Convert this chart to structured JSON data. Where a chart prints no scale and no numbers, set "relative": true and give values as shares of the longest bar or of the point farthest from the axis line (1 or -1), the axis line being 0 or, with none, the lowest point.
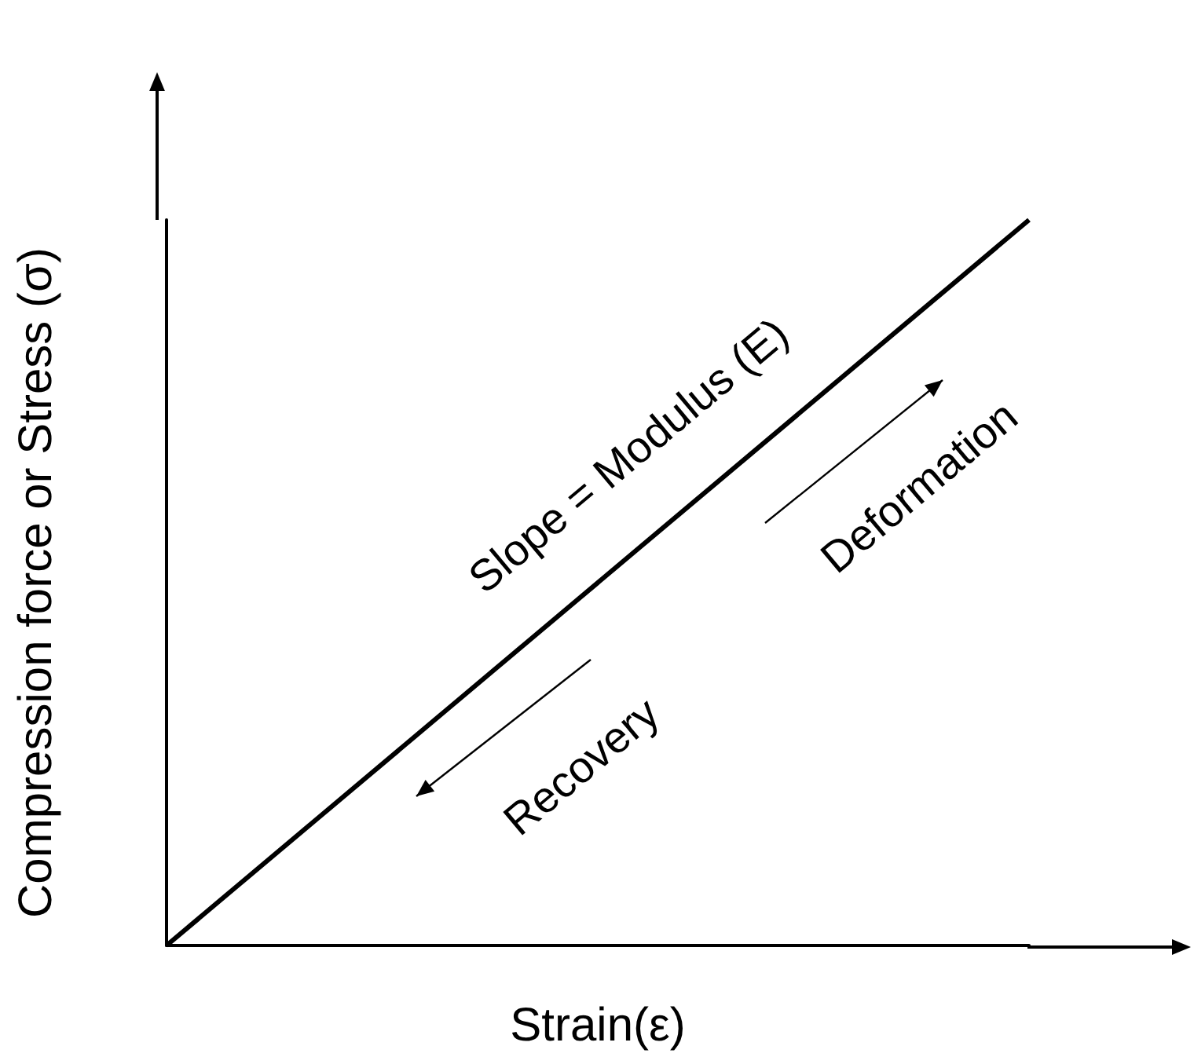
{
  "chart_data": {
    "type": "line",
    "relative": true,
    "xlabel": "Strain(ε)",
    "ylabel": "Compression force or Stress (σ)",
    "categories": [
      null,
      null
    ],
    "series": [
      {
        "color": "#000000",
        "values": [
          0,
          1
        ]
      }
    ],
    "annotations": [
      "Slope = Modulus (E)",
      "Deformation",
      "Recovery"
    ],
    "marker": "none",
    "grid": false
  }
}
